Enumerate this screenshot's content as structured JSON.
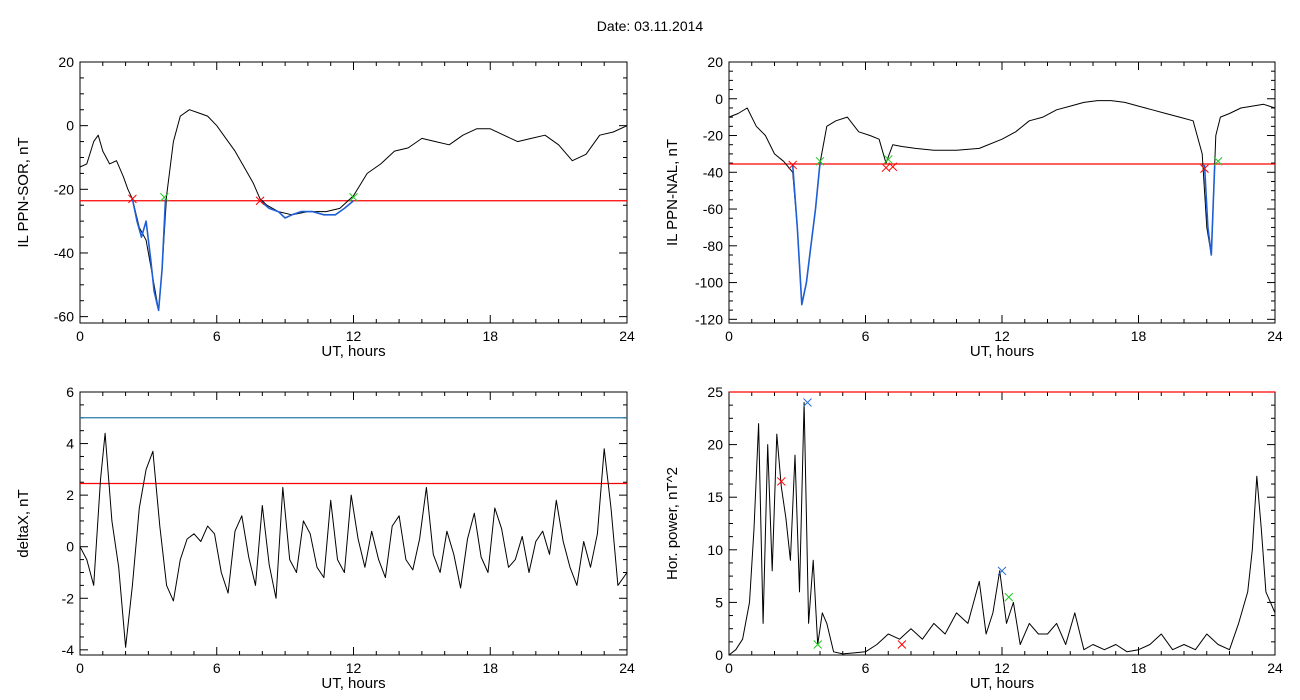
{
  "header": {
    "date_label": "Date:  03.11.2014"
  },
  "chart_data": [
    {
      "type": "line",
      "ylabel": "IL PPN-SOR, nT",
      "xlabel": "UT, hours",
      "xlim": [
        0,
        24
      ],
      "ylim": [
        -62,
        20
      ],
      "xticks": [
        0,
        6,
        12,
        18,
        24
      ],
      "yticks": [
        20,
        0,
        -20,
        -40,
        -60
      ],
      "hlines": [
        {
          "y": -23.6,
          "color": "#ff0000"
        }
      ],
      "series": [
        {
          "color": "#000000",
          "x": [
            0,
            0.3,
            0.6,
            0.8,
            1.0,
            1.3,
            1.6,
            1.9,
            2.1,
            2.3,
            2.6,
            2.9,
            3.1,
            3.3,
            3.45,
            3.6,
            3.8,
            4.1,
            4.4,
            4.8,
            5.2,
            5.6,
            6.0,
            6.4,
            6.8,
            7.2,
            7.6,
            7.9,
            8.2,
            8.7,
            9.3,
            10.0,
            10.8,
            11.4,
            12.0,
            12.6,
            13.2,
            13.8,
            14.4,
            15.0,
            15.6,
            16.2,
            16.8,
            17.4,
            18.0,
            18.6,
            19.2,
            19.8,
            20.4,
            21.0,
            21.6,
            22.2,
            22.8,
            23.4,
            24.0
          ],
          "y": [
            -13,
            -12,
            -5,
            -3,
            -8,
            -12,
            -11,
            -16,
            -20,
            -23,
            -32,
            -36,
            -44,
            -52,
            -58,
            -45,
            -22,
            -5,
            3,
            5,
            4,
            3,
            0,
            -4,
            -8,
            -13,
            -18,
            -23,
            -25,
            -27,
            -28,
            -27,
            -27,
            -26,
            -22,
            -15,
            -12,
            -8,
            -7,
            -4,
            -5,
            -6,
            -3,
            -1,
            -1,
            -3,
            -5,
            -4,
            -3,
            -6,
            -11,
            -9,
            -3,
            -2,
            0
          ]
        },
        {
          "color": "#1f5fd6",
          "segment": true,
          "x": [
            2.3,
            2.5,
            2.7,
            2.9,
            3.1,
            3.25,
            3.45,
            3.6,
            3.75
          ],
          "y": [
            -23,
            -30,
            -35,
            -30,
            -42,
            -52,
            -58,
            -45,
            -23
          ]
        },
        {
          "color": "#1f5fd6",
          "segment": true,
          "x": [
            7.9,
            8.3,
            8.7,
            9.0,
            9.3,
            9.7,
            10.2,
            10.7,
            11.2,
            11.6,
            12.0
          ],
          "y": [
            -23.6,
            -26,
            -27,
            -29,
            -28,
            -27,
            -27,
            -28,
            -28,
            -26,
            -23.6
          ]
        }
      ],
      "markers": [
        {
          "x": 2.3,
          "y": -23,
          "color": "#ff0000"
        },
        {
          "x": 3.7,
          "y": -22.5,
          "color": "#22cc22"
        },
        {
          "x": 7.9,
          "y": -23.6,
          "color": "#ff0000"
        },
        {
          "x": 12.0,
          "y": -22.5,
          "color": "#22cc22"
        }
      ]
    },
    {
      "type": "line",
      "ylabel": "IL PPN-NAL, nT",
      "xlabel": "UT, hours",
      "xlim": [
        0,
        24
      ],
      "ylim": [
        -122,
        20
      ],
      "xticks": [
        0,
        6,
        12,
        18,
        24
      ],
      "yticks": [
        20,
        0,
        -20,
        -40,
        -60,
        -80,
        -100,
        -120
      ],
      "hlines": [
        {
          "y": -35.5,
          "color": "#ff0000"
        }
      ],
      "series": [
        {
          "color": "#000000",
          "x": [
            0,
            0.4,
            0.8,
            1.2,
            1.6,
            2.0,
            2.4,
            2.8,
            3.0,
            3.2,
            3.4,
            3.6,
            3.8,
            4.0,
            4.3,
            4.7,
            5.2,
            5.7,
            6.2,
            6.6,
            6.9,
            7.2,
            7.6,
            8.2,
            9.0,
            10.0,
            11.0,
            12.0,
            12.6,
            13.2,
            13.8,
            14.4,
            15.0,
            15.6,
            16.2,
            16.8,
            17.4,
            18.0,
            18.6,
            19.2,
            19.8,
            20.4,
            20.8,
            21.0,
            21.2,
            21.4,
            21.6,
            22.0,
            22.5,
            23.0,
            23.5,
            24.0
          ],
          "y": [
            -10,
            -8,
            -5,
            -15,
            -20,
            -30,
            -34,
            -40,
            -70,
            -112,
            -100,
            -80,
            -60,
            -35,
            -15,
            -12,
            -10,
            -18,
            -20,
            -22,
            -35,
            -25,
            -26,
            -27,
            -28,
            -28,
            -27,
            -22,
            -18,
            -12,
            -10,
            -6,
            -4,
            -2,
            -1,
            -1,
            -2,
            -4,
            -6,
            -8,
            -10,
            -12,
            -30,
            -70,
            -85,
            -20,
            -10,
            -8,
            -5,
            -4,
            -3,
            -5
          ]
        },
        {
          "color": "#1f5fd6",
          "segment": true,
          "x": [
            2.8,
            3.0,
            3.2,
            3.4,
            3.6,
            3.8,
            4.0
          ],
          "y": [
            -36,
            -70,
            -112,
            -100,
            -80,
            -60,
            -35
          ]
        },
        {
          "color": "#1f5fd6",
          "segment": true,
          "x": [
            20.9,
            21.05,
            21.2,
            21.35
          ],
          "y": [
            -36,
            -70,
            -85,
            -36
          ]
        }
      ],
      "markers": [
        {
          "x": 2.8,
          "y": -36,
          "color": "#ff0000"
        },
        {
          "x": 4.0,
          "y": -34,
          "color": "#22cc22"
        },
        {
          "x": 6.9,
          "y": -37.5,
          "color": "#ff0000"
        },
        {
          "x": 7.0,
          "y": -33,
          "color": "#22cc22"
        },
        {
          "x": 7.2,
          "y": -37,
          "color": "#ff0000"
        },
        {
          "x": 20.9,
          "y": -38,
          "color": "#ff0000"
        },
        {
          "x": 21.5,
          "y": -34,
          "color": "#22cc22"
        }
      ]
    },
    {
      "type": "line",
      "ylabel": "deltaX, nT",
      "xlabel": "UT, hours",
      "xlim": [
        0,
        24
      ],
      "ylim": [
        -4.2,
        6
      ],
      "xticks": [
        0,
        6,
        12,
        18,
        24
      ],
      "yticks": [
        6,
        4,
        2,
        0,
        -2,
        -4
      ],
      "hlines": [
        {
          "y": 5.0,
          "color": "#2a7ca6"
        },
        {
          "y": 2.45,
          "color": "#ff0000"
        }
      ],
      "series": [
        {
          "color": "#000000",
          "x": [
            0,
            0.3,
            0.6,
            0.9,
            1.1,
            1.4,
            1.7,
            2.0,
            2.3,
            2.6,
            2.9,
            3.2,
            3.5,
            3.8,
            4.1,
            4.4,
            4.7,
            5.0,
            5.3,
            5.6,
            5.9,
            6.2,
            6.5,
            6.8,
            7.1,
            7.4,
            7.7,
            8.0,
            8.3,
            8.6,
            8.9,
            9.2,
            9.5,
            9.8,
            10.1,
            10.4,
            10.7,
            11.0,
            11.3,
            11.6,
            11.9,
            12.2,
            12.5,
            12.8,
            13.1,
            13.4,
            13.7,
            14.0,
            14.3,
            14.6,
            14.9,
            15.2,
            15.5,
            15.8,
            16.1,
            16.4,
            16.7,
            17.0,
            17.3,
            17.6,
            17.9,
            18.2,
            18.5,
            18.8,
            19.1,
            19.4,
            19.7,
            20.0,
            20.3,
            20.6,
            20.9,
            21.2,
            21.5,
            21.8,
            22.1,
            22.4,
            22.7,
            23.0,
            23.3,
            23.6,
            24.0
          ],
          "y": [
            0,
            -0.5,
            -1.5,
            2.6,
            4.4,
            1.0,
            -0.8,
            -3.9,
            -1.5,
            1.5,
            3.0,
            3.7,
            0.8,
            -1.5,
            -2.1,
            -0.5,
            0.3,
            0.5,
            0.2,
            0.8,
            0.5,
            -1.0,
            -1.8,
            0.6,
            1.2,
            -0.4,
            -1.5,
            1.6,
            -0.7,
            -2.0,
            2.3,
            -0.5,
            -1.0,
            1.0,
            0.5,
            -0.8,
            -1.2,
            1.8,
            -0.5,
            -1.0,
            2.0,
            0.3,
            -0.8,
            0.6,
            -0.5,
            -1.2,
            0.8,
            1.2,
            -0.5,
            -0.9,
            0.3,
            2.3,
            -0.3,
            -1.0,
            0.6,
            -0.3,
            -1.6,
            0.3,
            1.3,
            -0.4,
            -1.0,
            1.5,
            0.7,
            -0.8,
            -0.5,
            0.4,
            -1.0,
            0.2,
            0.6,
            -0.3,
            1.8,
            0.2,
            -0.8,
            -1.5,
            0.2,
            -0.8,
            0.5,
            3.8,
            1.5,
            -1.5,
            -1.0
          ]
        }
      ],
      "markers": []
    },
    {
      "type": "line",
      "ylabel": "Hor. power, nT^2",
      "xlabel": "UT, hours",
      "xlim": [
        0,
        24
      ],
      "ylim": [
        0,
        25
      ],
      "xticks": [
        0,
        6,
        12,
        18,
        24
      ],
      "yticks": [
        25,
        20,
        15,
        10,
        5,
        0
      ],
      "hlines": [
        {
          "y": 25,
          "color": "#ff0000"
        }
      ],
      "series": [
        {
          "color": "#000000",
          "x": [
            0,
            0.3,
            0.6,
            0.9,
            1.1,
            1.3,
            1.5,
            1.7,
            1.9,
            2.1,
            2.3,
            2.5,
            2.7,
            2.9,
            3.1,
            3.3,
            3.5,
            3.7,
            3.9,
            4.1,
            4.3,
            4.6,
            5.0,
            5.5,
            6.0,
            6.5,
            7.0,
            7.5,
            8.0,
            8.5,
            9.0,
            9.5,
            10.0,
            10.5,
            11.0,
            11.3,
            11.6,
            11.9,
            12.2,
            12.5,
            12.8,
            13.2,
            13.6,
            14.0,
            14.4,
            14.8,
            15.2,
            15.6,
            16.0,
            16.5,
            17.0,
            17.5,
            18.0,
            18.5,
            19.0,
            19.5,
            20.0,
            20.5,
            21.0,
            21.5,
            22.0,
            22.4,
            22.8,
            23.0,
            23.2,
            23.4,
            23.6,
            23.8,
            24.0
          ],
          "y": [
            0,
            0.5,
            1.5,
            5,
            12,
            22,
            3,
            20,
            8,
            21,
            16,
            13,
            9,
            19,
            6,
            24,
            3,
            9,
            1,
            4,
            3,
            0.3,
            0.1,
            0.2,
            0.3,
            1,
            2,
            1.5,
            2.5,
            1.5,
            3,
            2,
            4,
            3,
            7,
            2,
            4,
            8,
            3,
            5,
            1,
            3,
            2,
            2,
            3,
            1,
            4,
            0.5,
            1,
            0.5,
            1,
            0.3,
            0.5,
            1,
            2,
            0.5,
            1,
            0.5,
            2,
            1,
            0.5,
            3,
            6,
            10,
            17,
            12,
            6,
            5,
            4
          ]
        }
      ],
      "markers": [
        {
          "x": 2.3,
          "y": 16.5,
          "color": "#ff0000"
        },
        {
          "x": 3.45,
          "y": 24,
          "color": "#2a6fd6"
        },
        {
          "x": 3.9,
          "y": 1,
          "color": "#22cc22"
        },
        {
          "x": 7.6,
          "y": 1,
          "color": "#ff0000"
        },
        {
          "x": 12.0,
          "y": 8,
          "color": "#2a6fd6"
        },
        {
          "x": 12.3,
          "y": 5.5,
          "color": "#22cc22"
        }
      ]
    }
  ]
}
